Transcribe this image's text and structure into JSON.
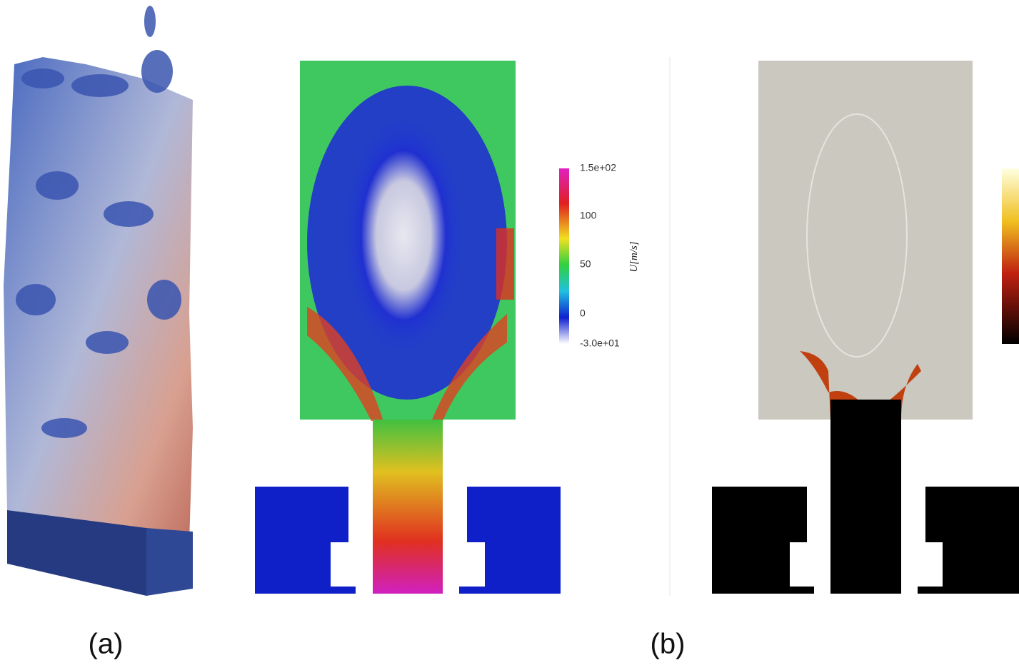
{
  "panels": [
    {
      "label": "(a)"
    },
    {
      "label": "(b)"
    }
  ],
  "colorbar": {
    "title": "U[m/s]",
    "ticks": [
      "1.5e+02",
      "100",
      "50",
      "0",
      "-3.0e+01"
    ]
  }
}
